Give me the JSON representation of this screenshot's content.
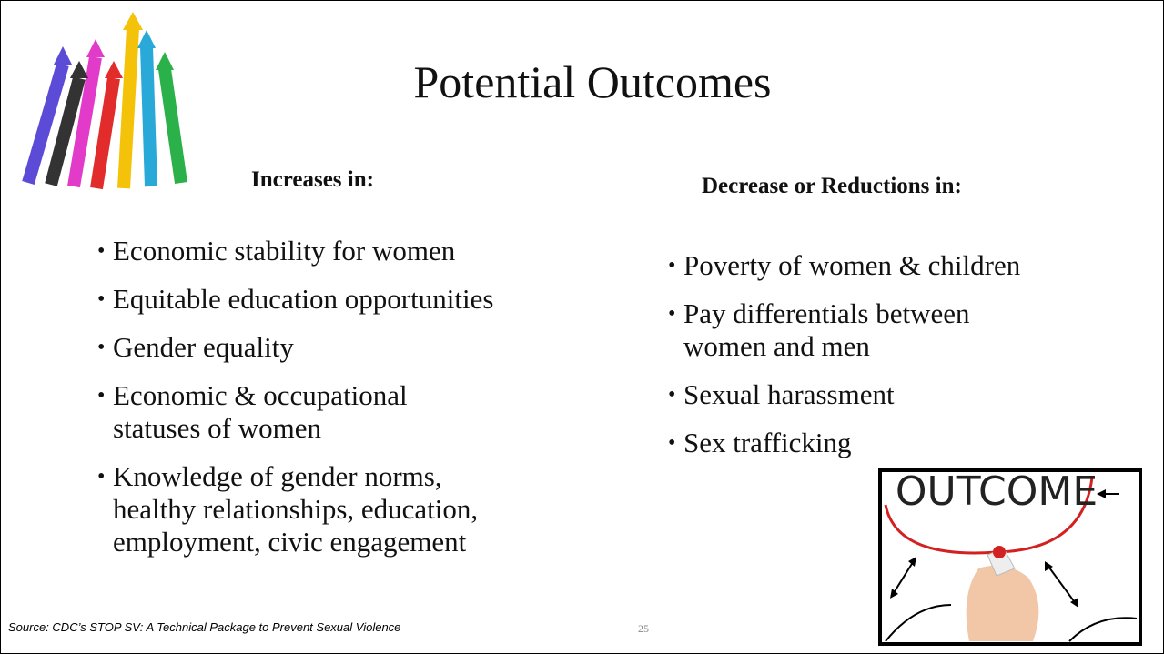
{
  "title": "Potential Outcomes",
  "left": {
    "heading": "Increases in:",
    "bullets": [
      [
        "Economic stability for women"
      ],
      [
        "Equitable education opportunities"
      ],
      [
        "Gender equality"
      ],
      [
        "Economic & occupational",
        "statuses of women"
      ],
      [
        "Knowledge of gender norms,",
        "healthy relationships, education,",
        "employment, civic engagement"
      ]
    ]
  },
  "right": {
    "heading": "Decrease or Reductions in:",
    "bullets": [
      [
        "Poverty of women & children"
      ],
      [
        "Pay differentials between",
        "women and men"
      ],
      [
        "Sexual harassment"
      ],
      [
        "Sex trafficking"
      ]
    ]
  },
  "image": {
    "label": "OUTCOME"
  },
  "source": "Source:  CDC’s STOP SV: A Technical Package to Prevent Sexual Violence",
  "page_number": "25"
}
